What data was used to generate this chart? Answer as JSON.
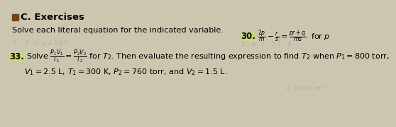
{
  "bg_color": "#ccc5b0",
  "title": "C. Exercises",
  "subtitle": "Solve each literal equation for the indicated variable.",
  "problem30_num": "30.",
  "problem30_eq": "$\\frac{2p}{m} - \\frac{r}{s} = \\frac{pr+q}{ms}$  for $p$",
  "problem33_num": "33.",
  "problem33_line1": "Solve $\\frac{P_1V_1}{T_1} = \\frac{P_2V_2}{T_2}$ for $T_2$. Then evaluate the resulting expression to find $T_2$ when $P_1 = 800$ torr,",
  "problem33_line2": "$V_1 = 2.5$ L, $T_1 = 300$ K, $P_2 = 760$ torr, and $V_2 = 1.5$ L.",
  "square_color": "#7a4010",
  "highlight_color": "#c8d87a",
  "title_fontsize": 9.5,
  "subtitle_fontsize": 8.0,
  "body_fontsize": 8.0,
  "num_fontsize": 8.5,
  "faded_color": "#b0a898",
  "faded_alpha": 0.7
}
